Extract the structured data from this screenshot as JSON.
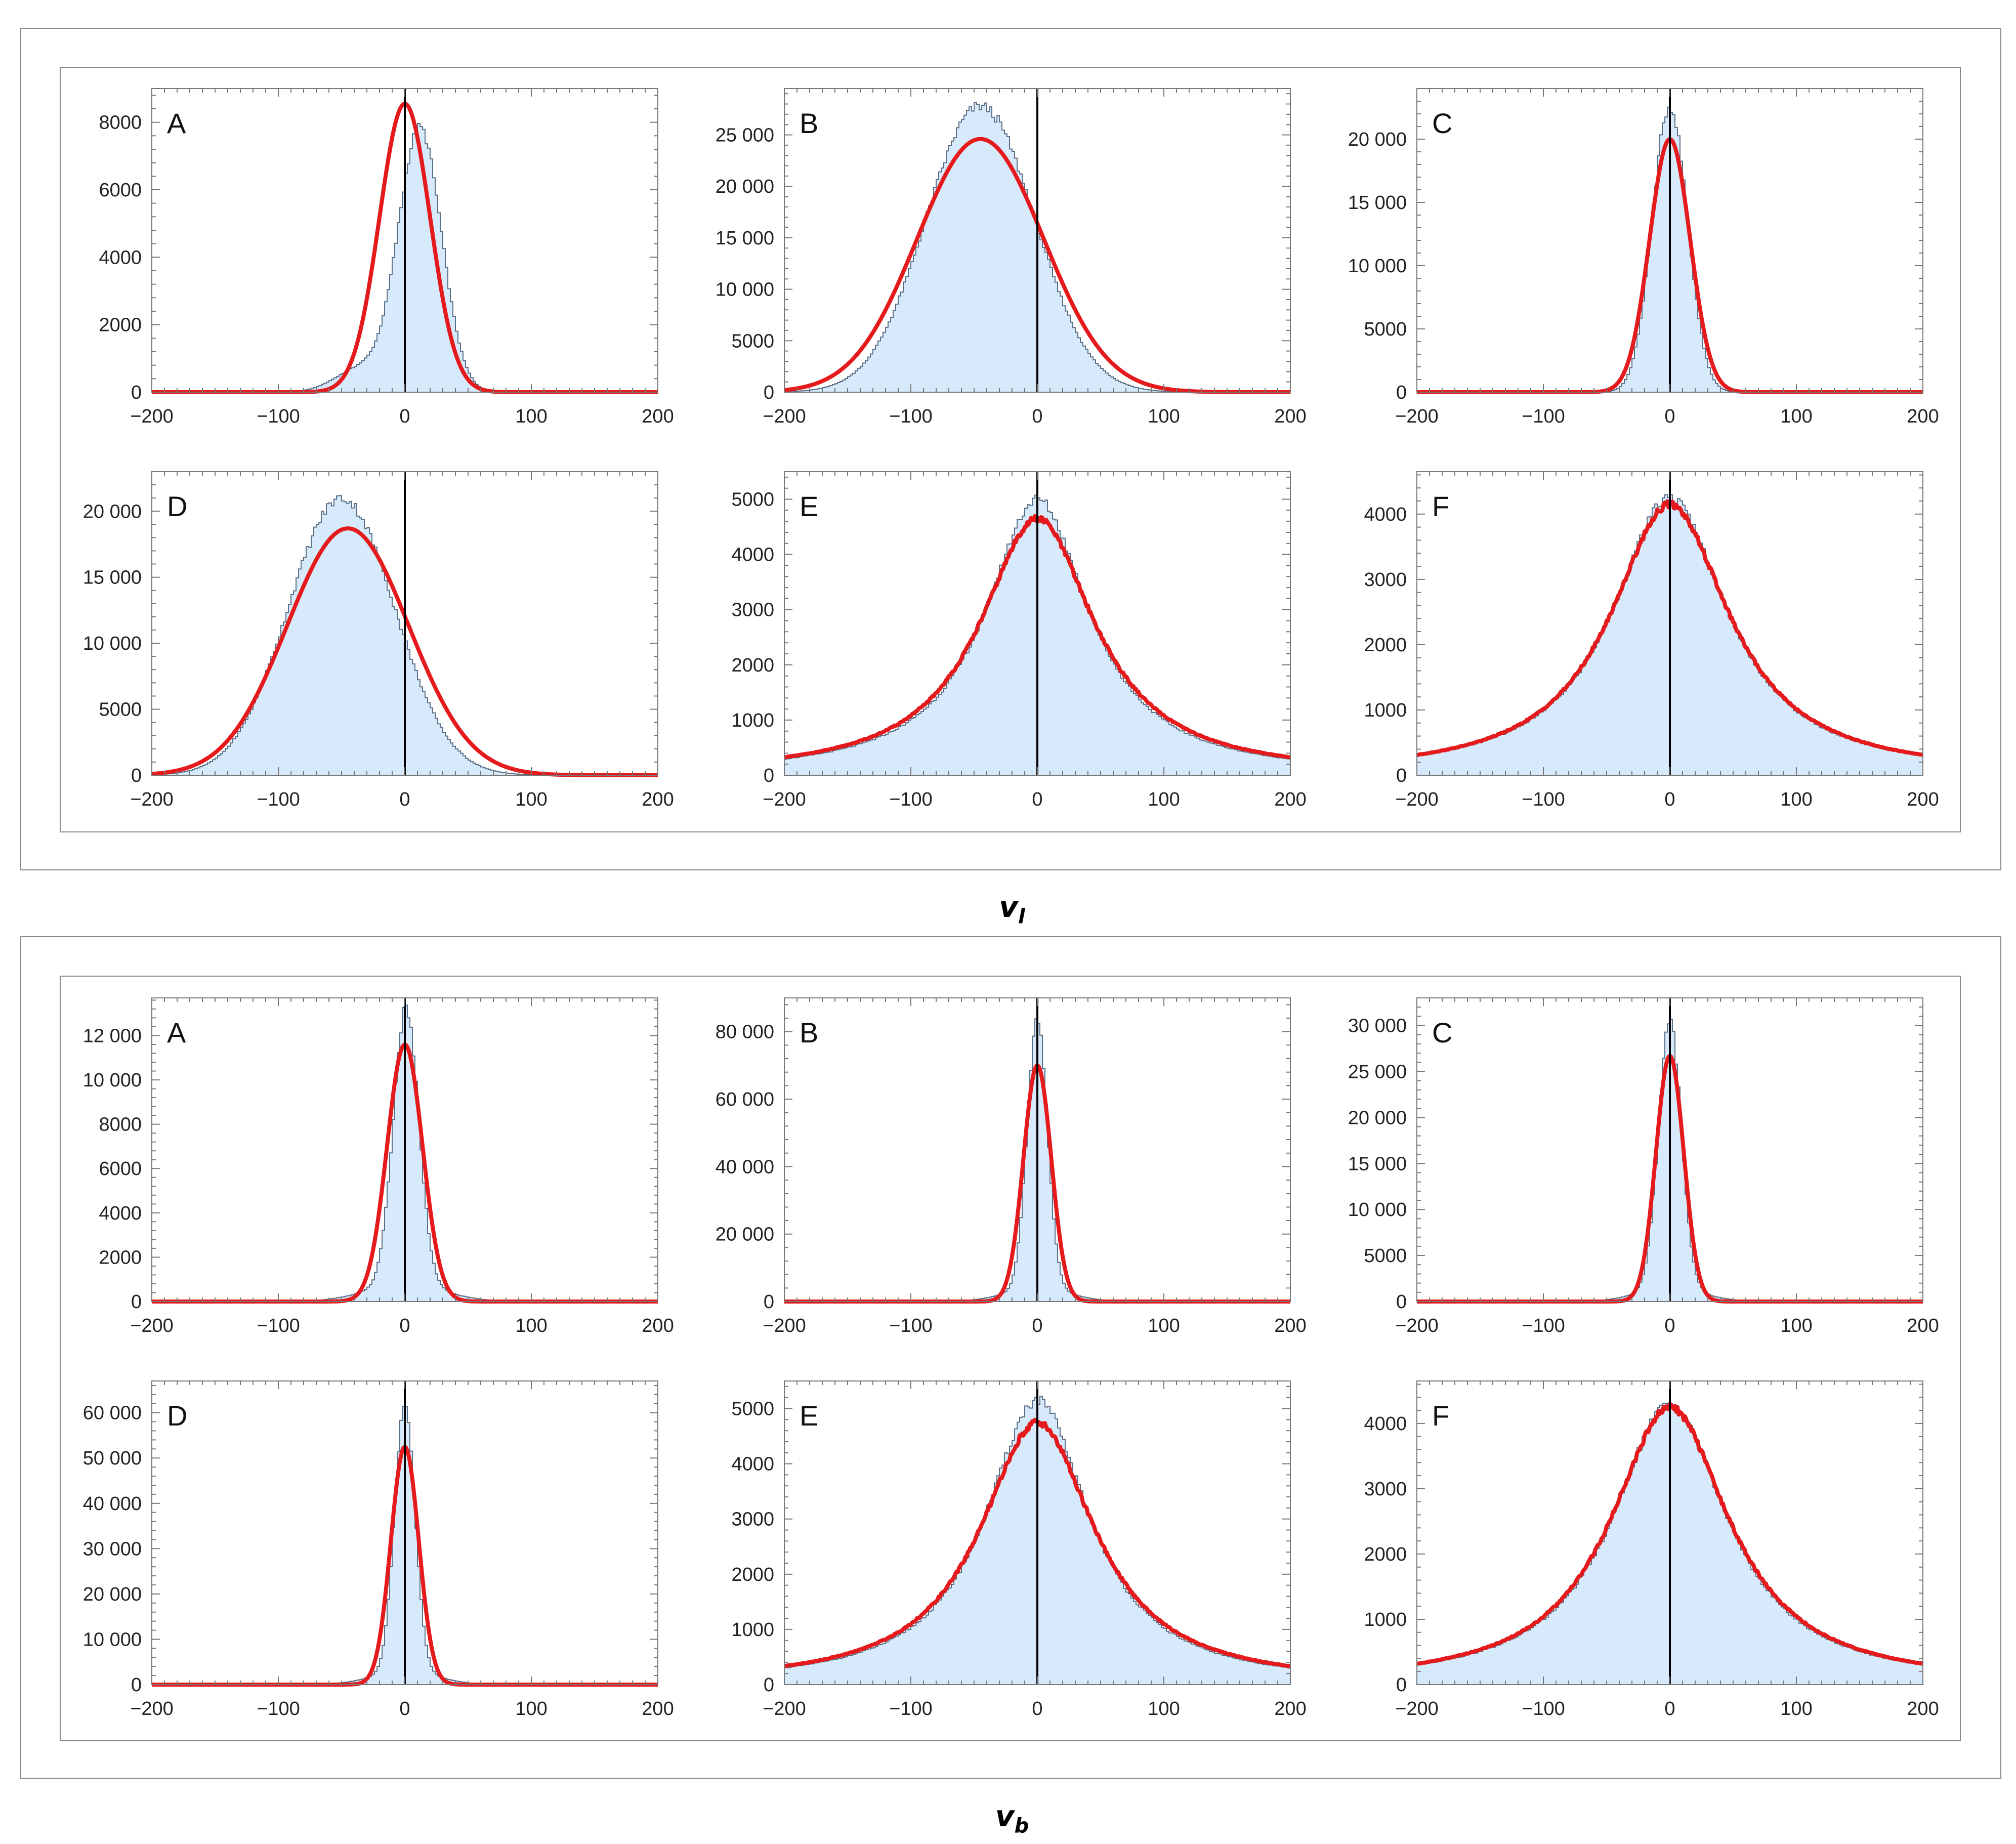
{
  "figure": {
    "sections": [
      {
        "key": "vl",
        "label_main": "v",
        "label_sub": "l",
        "panels": [
          {
            "letter": "A",
            "ymax": 9000,
            "yticks": [
              0,
              2000,
              4000,
              6000,
              8000
            ],
            "ytick_labels": [
              "0",
              "2000",
              "4000",
              "6000",
              "8000"
            ]
          },
          {
            "letter": "B",
            "ymax": 29500,
            "yticks": [
              0,
              5000,
              10000,
              15000,
              20000,
              25000
            ],
            "ytick_labels": [
              "0",
              "5000",
              "10 000",
              "15 000",
              "20 000",
              "25 000"
            ]
          },
          {
            "letter": "C",
            "ymax": 24000,
            "yticks": [
              0,
              5000,
              10000,
              15000,
              20000
            ],
            "ytick_labels": [
              "0",
              "5000",
              "10 000",
              "15 000",
              "20 000"
            ]
          },
          {
            "letter": "D",
            "ymax": 23000,
            "yticks": [
              0,
              5000,
              10000,
              15000,
              20000
            ],
            "ytick_labels": [
              "0",
              "5000",
              "10 000",
              "15 000",
              "20 000"
            ]
          },
          {
            "letter": "E",
            "ymax": 5500,
            "yticks": [
              0,
              1000,
              2000,
              3000,
              4000,
              5000
            ],
            "ytick_labels": [
              "0",
              "1000",
              "2000",
              "3000",
              "4000",
              "5000"
            ]
          },
          {
            "letter": "F",
            "ymax": 4650,
            "yticks": [
              0,
              1000,
              2000,
              3000,
              4000
            ],
            "ytick_labels": [
              "0",
              "1000",
              "2000",
              "3000",
              "4000"
            ]
          }
        ]
      },
      {
        "key": "vb",
        "label_main": "v",
        "label_sub": "b",
        "panels": [
          {
            "letter": "A",
            "ymax": 13700,
            "yticks": [
              0,
              2000,
              4000,
              6000,
              8000,
              10000,
              12000
            ],
            "ytick_labels": [
              "0",
              "2000",
              "4000",
              "6000",
              "8000",
              "10 000",
              "12 000"
            ]
          },
          {
            "letter": "B",
            "ymax": 90000,
            "yticks": [
              0,
              20000,
              40000,
              60000,
              80000
            ],
            "ytick_labels": [
              "0",
              "20 000",
              "40 000",
              "60 000",
              "80 000"
            ]
          },
          {
            "letter": "C",
            "ymax": 33000,
            "yticks": [
              0,
              5000,
              10000,
              15000,
              20000,
              25000,
              30000
            ],
            "ytick_labels": [
              "0",
              "5000",
              "10 000",
              "15 000",
              "20 000",
              "25 000",
              "30 000"
            ]
          },
          {
            "letter": "D",
            "ymax": 67000,
            "yticks": [
              0,
              10000,
              20000,
              30000,
              40000,
              50000,
              60000
            ],
            "ytick_labels": [
              "0",
              "10 000",
              "20 000",
              "30 000",
              "40 000",
              "50 000",
              "60 000"
            ]
          },
          {
            "letter": "E",
            "ymax": 5500,
            "yticks": [
              0,
              1000,
              2000,
              3000,
              4000,
              5000
            ],
            "ytick_labels": [
              "0",
              "1000",
              "2000",
              "3000",
              "4000",
              "5000"
            ]
          },
          {
            "letter": "F",
            "ymax": 4650,
            "yticks": [
              0,
              1000,
              2000,
              3000,
              4000
            ],
            "ytick_labels": [
              "0",
              "1000",
              "2000",
              "3000",
              "4000"
            ]
          }
        ]
      }
    ]
  },
  "chart_data": [
    {
      "type": "area",
      "section": "vl",
      "panel": "A",
      "xlim": [
        -200,
        200
      ],
      "xticks": [
        -200,
        -100,
        0,
        100,
        200
      ],
      "xtick_labels": [
        "−200",
        "−100",
        "0",
        "100",
        "200"
      ],
      "series": [
        {
          "name": "histogram",
          "style": "step-filled",
          "components": [
            {
              "amp": 7800,
              "mu": 12,
              "sigma": 17
            },
            {
              "amp": 700,
              "mu": -35,
              "sigma": 20
            }
          ]
        },
        {
          "name": "model",
          "style": "line",
          "components": [
            {
              "amp": 8550,
              "mu": 0,
              "sigma": 20
            }
          ]
        }
      ]
    },
    {
      "type": "area",
      "section": "vl",
      "panel": "B",
      "xlim": [
        -200,
        200
      ],
      "xticks": [
        -200,
        -100,
        0,
        100,
        200
      ],
      "xtick_labels": [
        "−200",
        "−100",
        "0",
        "100",
        "200"
      ],
      "series": [
        {
          "name": "histogram",
          "style": "step-filled",
          "components": [
            {
              "amp": 27800,
              "mu": -45,
              "sigma": 43
            }
          ]
        },
        {
          "name": "model",
          "style": "line",
          "components": [
            {
              "amp": 24600,
              "mu": -45,
              "sigma": 50
            }
          ]
        }
      ]
    },
    {
      "type": "area",
      "section": "vl",
      "panel": "C",
      "xlim": [
        -200,
        200
      ],
      "xticks": [
        -200,
        -100,
        0,
        100,
        200
      ],
      "xtick_labels": [
        "−200",
        "−100",
        "0",
        "100",
        "200"
      ],
      "series": [
        {
          "name": "histogram",
          "style": "step-filled",
          "components": [
            {
              "amp": 22600,
              "mu": 0,
              "sigma": 14
            }
          ]
        },
        {
          "name": "model",
          "style": "line",
          "components": [
            {
              "amp": 20000,
              "mu": 0,
              "sigma": 16
            }
          ]
        }
      ]
    },
    {
      "type": "area",
      "section": "vl",
      "panel": "D",
      "xlim": [
        -200,
        200
      ],
      "xticks": [
        -200,
        -100,
        0,
        100,
        200
      ],
      "xtick_labels": [
        "−200",
        "−100",
        "0",
        "100",
        "200"
      ],
      "series": [
        {
          "name": "histogram",
          "style": "step-filled",
          "components": [
            {
              "amp": 21000,
              "mu": -50,
              "sigma": 42
            }
          ]
        },
        {
          "name": "model",
          "style": "line",
          "components": [
            {
              "amp": 18700,
              "mu": -45,
              "sigma": 48
            }
          ]
        }
      ]
    },
    {
      "type": "area",
      "section": "vl",
      "panel": "E",
      "xlim": [
        -200,
        200
      ],
      "xticks": [
        -200,
        -100,
        0,
        100,
        200
      ],
      "xtick_labels": [
        "−200",
        "−100",
        "0",
        "100",
        "200"
      ],
      "series": [
        {
          "name": "histogram",
          "style": "step-filled",
          "components": [
            {
              "amp": 5000,
              "mu": 0,
              "gamma": 50
            }
          ]
        },
        {
          "name": "model",
          "style": "line",
          "components": [
            {
              "amp": 4650,
              "mu": 0,
              "gamma": 55
            }
          ]
        }
      ]
    },
    {
      "type": "area",
      "section": "vl",
      "panel": "F",
      "xlim": [
        -200,
        200
      ],
      "xticks": [
        -200,
        -100,
        0,
        100,
        200
      ],
      "xtick_labels": [
        "−200",
        "−100",
        "0",
        "100",
        "200"
      ],
      "series": [
        {
          "name": "histogram",
          "style": "step-filled",
          "components": [
            {
              "amp": 4250,
              "mu": 0,
              "gamma": 55
            }
          ]
        },
        {
          "name": "model",
          "style": "line",
          "components": [
            {
              "amp": 4150,
              "mu": 0,
              "gamma": 57
            }
          ]
        }
      ]
    },
    {
      "type": "area",
      "section": "vb",
      "panel": "A",
      "xlim": [
        -200,
        200
      ],
      "xticks": [
        -200,
        -100,
        0,
        100,
        200
      ],
      "xtick_labels": [
        "−200",
        "−100",
        "0",
        "100",
        "200"
      ],
      "series": [
        {
          "name": "histogram",
          "style": "step-filled",
          "components": [
            {
              "amp": 12500,
              "mu": 1,
              "sigma": 10
            },
            {
              "amp": 800,
              "mu": 0,
              "sigma": 30
            }
          ]
        },
        {
          "name": "model",
          "style": "line",
          "components": [
            {
              "amp": 11600,
              "mu": 0,
              "sigma": 14
            }
          ]
        }
      ]
    },
    {
      "type": "area",
      "section": "vb",
      "panel": "B",
      "xlim": [
        -200,
        200
      ],
      "xticks": [
        -200,
        -100,
        0,
        100,
        200
      ],
      "xtick_labels": [
        "−200",
        "−100",
        "0",
        "100",
        "200"
      ],
      "series": [
        {
          "name": "histogram",
          "style": "step-filled",
          "components": [
            {
              "amp": 80000,
              "mu": 0,
              "sigma": 8
            },
            {
              "amp": 4000,
              "mu": 0,
              "sigma": 25
            }
          ]
        },
        {
          "name": "model",
          "style": "line",
          "components": [
            {
              "amp": 70000,
              "mu": 0,
              "sigma": 11
            }
          ]
        }
      ]
    },
    {
      "type": "area",
      "section": "vb",
      "panel": "C",
      "xlim": [
        -200,
        200
      ],
      "xticks": [
        -200,
        -100,
        0,
        100,
        200
      ],
      "xtick_labels": [
        "−200",
        "−100",
        "0",
        "100",
        "200"
      ],
      "series": [
        {
          "name": "histogram",
          "style": "step-filled",
          "components": [
            {
              "amp": 29000,
              "mu": 0,
              "sigma": 9
            },
            {
              "amp": 1500,
              "mu": 0,
              "sigma": 25
            }
          ]
        },
        {
          "name": "model",
          "style": "line",
          "components": [
            {
              "amp": 26700,
              "mu": 0,
              "sigma": 11
            }
          ]
        }
      ]
    },
    {
      "type": "area",
      "section": "vb",
      "panel": "D",
      "xlim": [
        -200,
        200
      ],
      "xticks": [
        -200,
        -100,
        0,
        100,
        200
      ],
      "xtick_labels": [
        "−200",
        "−100",
        "0",
        "100",
        "200"
      ],
      "series": [
        {
          "name": "histogram",
          "style": "step-filled",
          "components": [
            {
              "amp": 60000,
              "mu": 0,
              "sigma": 8
            },
            {
              "amp": 3000,
              "mu": 0,
              "sigma": 25
            }
          ]
        },
        {
          "name": "model",
          "style": "line",
          "components": [
            {
              "amp": 52500,
              "mu": 0,
              "sigma": 11
            }
          ]
        }
      ]
    },
    {
      "type": "area",
      "section": "vb",
      "panel": "E",
      "xlim": [
        -200,
        200
      ],
      "xticks": [
        -200,
        -100,
        0,
        100,
        200
      ],
      "xtick_labels": [
        "−200",
        "−100",
        "0",
        "100",
        "200"
      ],
      "series": [
        {
          "name": "histogram",
          "style": "step-filled",
          "components": [
            {
              "amp": 5150,
              "mu": 0,
              "gamma": 50
            }
          ]
        },
        {
          "name": "model",
          "style": "line",
          "components": [
            {
              "amp": 4750,
              "mu": 0,
              "gamma": 55
            }
          ]
        }
      ]
    },
    {
      "type": "area",
      "section": "vb",
      "panel": "F",
      "xlim": [
        -200,
        200
      ],
      "xticks": [
        -200,
        -100,
        0,
        100,
        200
      ],
      "xtick_labels": [
        "−200",
        "−100",
        "0",
        "100",
        "200"
      ],
      "series": [
        {
          "name": "histogram",
          "style": "step-filled",
          "components": [
            {
              "amp": 4300,
              "mu": 0,
              "gamma": 55
            }
          ]
        },
        {
          "name": "model",
          "style": "line",
          "components": [
            {
              "amp": 4250,
              "mu": 0,
              "gamma": 57
            }
          ]
        }
      ]
    }
  ],
  "colors": {
    "histogram_fill": "#d6eafb",
    "histogram_edge": "#5a6f86",
    "model_line": "#e41a1c",
    "zero_line": "#000000",
    "frame": "#8a8a8a"
  }
}
